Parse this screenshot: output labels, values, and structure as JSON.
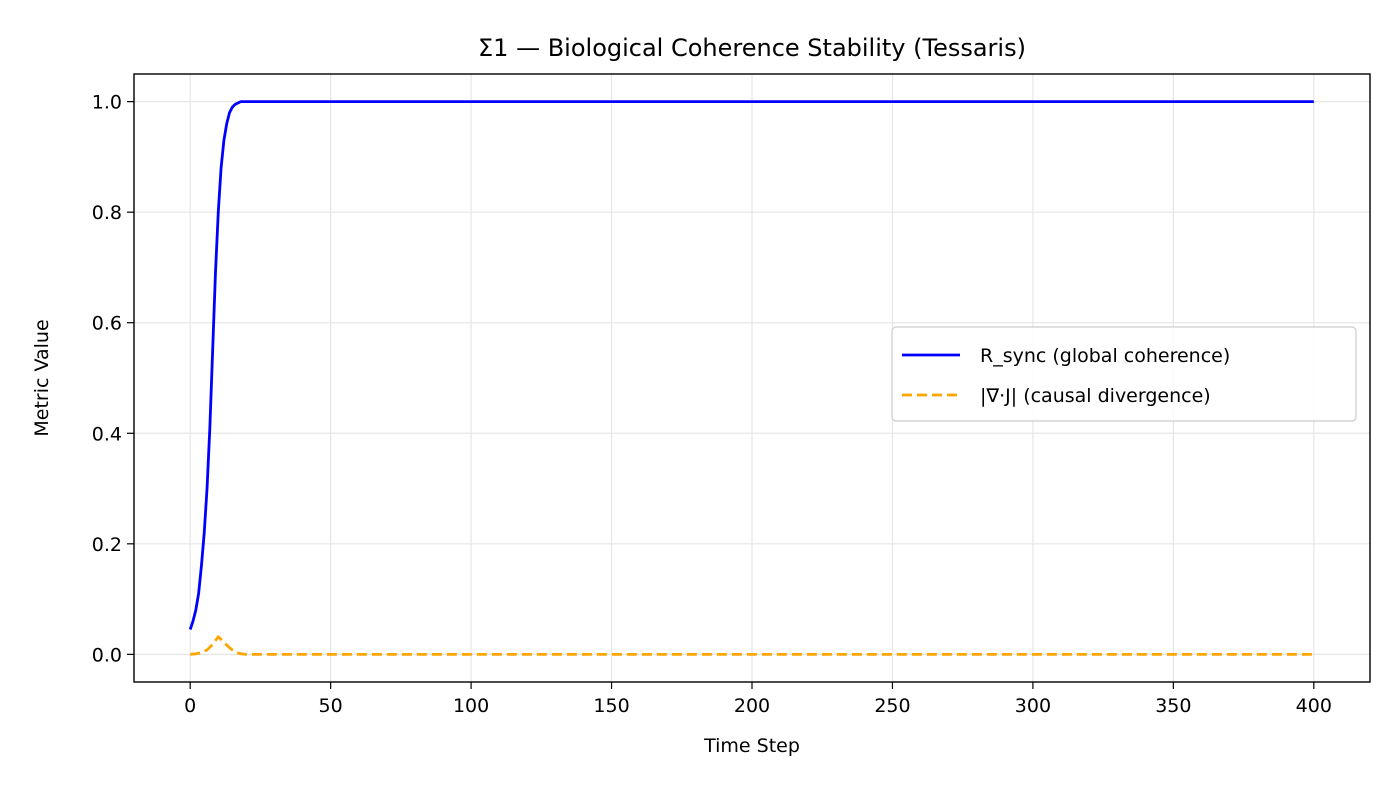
{
  "chart_data": {
    "type": "line",
    "title": "Σ1 — Biological Coherence Stability (Tessaris)",
    "xlabel": "Time Step",
    "ylabel": "Metric Value",
    "xlim": [
      -20,
      420
    ],
    "ylim": [
      -0.05,
      1.05
    ],
    "x_ticks": [
      0,
      50,
      100,
      150,
      200,
      250,
      300,
      350,
      400
    ],
    "x_tick_labels": [
      "0",
      "50",
      "100",
      "150",
      "200",
      "250",
      "300",
      "350",
      "400"
    ],
    "y_ticks": [
      0.0,
      0.2,
      0.4,
      0.6,
      0.8,
      1.0
    ],
    "y_tick_labels": [
      "0.0",
      "0.2",
      "0.4",
      "0.6",
      "0.8",
      "1.0"
    ],
    "grid": true,
    "legend_position": "center-right",
    "series": [
      {
        "name": "R_sync (global coherence)",
        "color": "#0000ff",
        "style": "solid",
        "x": [
          0,
          1,
          2,
          3,
          4,
          5,
          6,
          7,
          8,
          9,
          10,
          11,
          12,
          13,
          14,
          15,
          16,
          18,
          20,
          50,
          100,
          200,
          300,
          400
        ],
        "y": [
          0.045,
          0.06,
          0.08,
          0.11,
          0.16,
          0.22,
          0.3,
          0.41,
          0.55,
          0.69,
          0.8,
          0.88,
          0.93,
          0.96,
          0.98,
          0.99,
          0.995,
          1.0,
          1.0,
          1.0,
          1.0,
          1.0,
          1.0,
          1.0
        ]
      },
      {
        "name": "|∇·J| (causal divergence)",
        "color": "#ffa500",
        "style": "dashed",
        "x": [
          0,
          2,
          4,
          6,
          8,
          10,
          12,
          14,
          16,
          18,
          20,
          50,
          100,
          200,
          300,
          400
        ],
        "y": [
          0.0,
          0.001,
          0.003,
          0.008,
          0.018,
          0.032,
          0.022,
          0.012,
          0.004,
          0.001,
          0.0,
          0.0,
          0.0,
          0.0,
          0.0,
          0.0
        ]
      }
    ]
  }
}
